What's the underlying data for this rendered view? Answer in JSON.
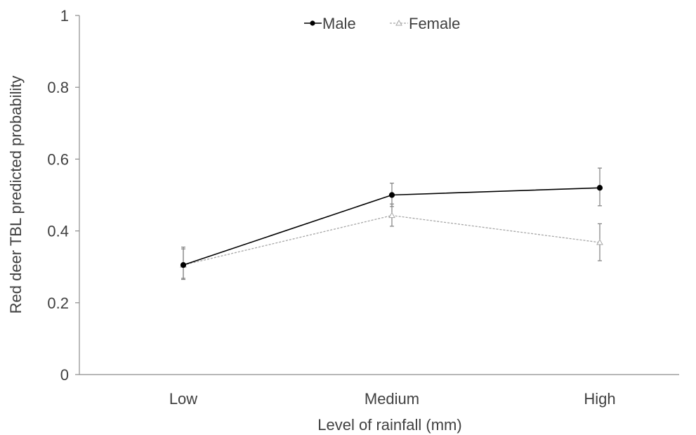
{
  "chart_data": {
    "type": "line",
    "title": "",
    "xlabel": "Level of rainfall (mm)",
    "ylabel": "Red deer TBL predicted probability",
    "categories": [
      "Low",
      "Medium",
      "High"
    ],
    "ylim": [
      0,
      1
    ],
    "yticks": [
      0,
      0.2,
      0.4,
      0.6,
      0.8,
      1
    ],
    "ytick_labels": [
      "0",
      "0.2",
      "0.4",
      "0.6",
      "0.8",
      "1"
    ],
    "grid": false,
    "legend_position": "top-center",
    "series": [
      {
        "name": "Male",
        "values": [
          0.305,
          0.5,
          0.52
        ],
        "error_low": [
          0.265,
          0.468,
          0.47
        ],
        "error_high": [
          0.35,
          0.533,
          0.575
        ],
        "color": "#000000",
        "line_style": "solid",
        "marker": "filled-circle"
      },
      {
        "name": "Female",
        "values": [
          0.305,
          0.443,
          0.368
        ],
        "error_low": [
          0.268,
          0.413,
          0.317
        ],
        "error_high": [
          0.355,
          0.475,
          0.42
        ],
        "color": "#a6a6a6",
        "line_style": "dashed",
        "marker": "open-triangle"
      }
    ]
  }
}
